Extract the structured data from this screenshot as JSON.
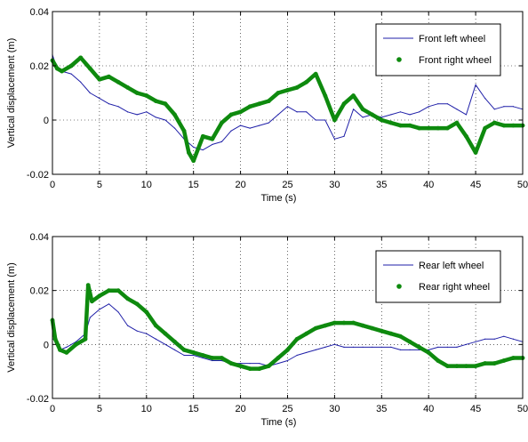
{
  "chart_data": [
    {
      "type": "line",
      "xlabel": "Time (s)",
      "ylabel": "Vertical displacement (m)",
      "xlim": [
        0,
        50
      ],
      "ylim": [
        -0.02,
        0.04
      ],
      "xticks": [
        0,
        5,
        10,
        15,
        20,
        25,
        30,
        35,
        40,
        45,
        50
      ],
      "yticks": [
        -0.02,
        0,
        0.02,
        0.04
      ],
      "ytick_labels": [
        "-0.02",
        "0",
        "0.02",
        "0.04"
      ],
      "grid": true,
      "legend_position": "top-right",
      "series": [
        {
          "name": "Front left wheel",
          "color": "#1f1fa8",
          "style": "thin-line",
          "x": [
            0,
            0.5,
            1,
            2,
            3,
            4,
            5,
            6,
            7,
            8,
            9,
            10,
            11,
            12,
            13,
            14,
            15,
            16,
            17,
            18,
            19,
            20,
            21,
            22,
            23,
            24,
            25,
            26,
            27,
            28,
            29,
            30,
            31,
            32,
            33,
            34,
            35,
            36,
            37,
            38,
            39,
            40,
            41,
            42,
            43,
            44,
            45,
            46,
            47,
            48,
            49,
            50
          ],
          "y": [
            0.024,
            0.019,
            0.018,
            0.017,
            0.014,
            0.01,
            0.008,
            0.006,
            0.005,
            0.003,
            0.002,
            0.003,
            0.001,
            0.0,
            -0.003,
            -0.007,
            -0.01,
            -0.011,
            -0.009,
            -0.008,
            -0.004,
            -0.002,
            -0.003,
            -0.002,
            -0.001,
            0.002,
            0.005,
            0.003,
            0.003,
            0.0,
            0.0,
            -0.007,
            -0.006,
            0.004,
            0.001,
            0.002,
            0.001,
            0.002,
            0.003,
            0.002,
            0.003,
            0.005,
            0.006,
            0.006,
            0.004,
            0.002,
            0.013,
            0.008,
            0.004,
            0.005,
            0.005,
            0.004
          ]
        },
        {
          "name": "Front right wheel",
          "color": "#0e8a0e",
          "style": "thick-marker-line",
          "x": [
            0,
            0.5,
            1,
            2,
            3,
            4,
            5,
            6,
            7,
            8,
            9,
            10,
            11,
            12,
            13,
            14,
            14.5,
            15,
            16,
            17,
            18,
            19,
            20,
            21,
            22,
            23,
            24,
            25,
            26,
            27,
            28,
            29,
            30,
            31,
            32,
            33,
            34,
            35,
            36,
            37,
            38,
            39,
            40,
            41,
            42,
            43,
            44,
            45,
            46,
            47,
            48,
            49,
            50
          ],
          "y": [
            0.022,
            0.019,
            0.018,
            0.02,
            0.023,
            0.019,
            0.015,
            0.016,
            0.014,
            0.012,
            0.01,
            0.009,
            0.007,
            0.006,
            0.002,
            -0.004,
            -0.012,
            -0.015,
            -0.006,
            -0.007,
            -0.001,
            0.002,
            0.003,
            0.005,
            0.006,
            0.007,
            0.01,
            0.011,
            0.012,
            0.014,
            0.017,
            0.009,
            0.0,
            0.006,
            0.009,
            0.004,
            0.002,
            0.0,
            -0.001,
            -0.002,
            -0.002,
            -0.003,
            -0.003,
            -0.003,
            -0.003,
            -0.001,
            -0.006,
            -0.012,
            -0.003,
            -0.001,
            -0.002,
            -0.002,
            -0.002
          ]
        }
      ]
    },
    {
      "type": "line",
      "xlabel": "Time (s)",
      "ylabel": "Vertical displacement (m)",
      "xlim": [
        0,
        50
      ],
      "ylim": [
        -0.02,
        0.04
      ],
      "xticks": [
        0,
        5,
        10,
        15,
        20,
        25,
        30,
        35,
        40,
        45,
        50
      ],
      "yticks": [
        -0.02,
        0,
        0.02,
        0.04
      ],
      "ytick_labels": [
        "-0.02",
        "0",
        "0.02",
        "0.04"
      ],
      "grid": true,
      "legend_position": "top-right",
      "series": [
        {
          "name": "Rear left wheel",
          "color": "#1f1fa8",
          "style": "thin-line",
          "x": [
            0,
            0.3,
            0.8,
            1.5,
            2.5,
            3.5,
            4,
            5,
            6,
            7,
            8,
            9,
            10,
            11,
            12,
            13,
            14,
            15,
            16,
            17,
            18,
            19,
            20,
            21,
            22,
            23,
            24,
            25,
            26,
            27,
            28,
            29,
            30,
            31,
            32,
            33,
            34,
            35,
            36,
            37,
            38,
            39,
            40,
            41,
            42,
            43,
            44,
            45,
            46,
            47,
            48,
            49,
            50
          ],
          "y": [
            0.002,
            0.002,
            -0.002,
            -0.001,
            0.001,
            0.004,
            0.01,
            0.013,
            0.015,
            0.012,
            0.007,
            0.005,
            0.004,
            0.002,
            0.0,
            -0.002,
            -0.004,
            -0.004,
            -0.005,
            -0.006,
            -0.006,
            -0.007,
            -0.007,
            -0.007,
            -0.007,
            -0.008,
            -0.007,
            -0.006,
            -0.004,
            -0.003,
            -0.002,
            -0.001,
            0.0,
            -0.001,
            -0.001,
            -0.001,
            -0.001,
            -0.001,
            -0.001,
            -0.002,
            -0.002,
            -0.002,
            -0.002,
            -0.001,
            -0.001,
            -0.001,
            0.0,
            0.001,
            0.002,
            0.002,
            0.003,
            0.002,
            0.001
          ]
        },
        {
          "name": "Rear right wheel",
          "color": "#0e8a0e",
          "style": "thick-marker-line",
          "x": [
            0,
            0.3,
            0.8,
            1.5,
            2.5,
            3.5,
            3.8,
            4.2,
            5,
            6,
            7,
            8,
            9,
            10,
            11,
            12,
            13,
            14,
            15,
            16,
            17,
            18,
            19,
            20,
            21,
            22,
            23,
            24,
            25,
            26,
            27,
            28,
            29,
            30,
            31,
            32,
            33,
            34,
            35,
            36,
            37,
            38,
            39,
            40,
            41,
            42,
            43,
            44,
            45,
            46,
            47,
            48,
            49,
            50
          ],
          "y": [
            0.009,
            0.002,
            -0.002,
            -0.003,
            0.0,
            0.002,
            0.022,
            0.016,
            0.018,
            0.02,
            0.02,
            0.017,
            0.015,
            0.012,
            0.007,
            0.004,
            0.001,
            -0.002,
            -0.003,
            -0.004,
            -0.005,
            -0.005,
            -0.007,
            -0.008,
            -0.009,
            -0.009,
            -0.008,
            -0.005,
            -0.002,
            0.002,
            0.004,
            0.006,
            0.007,
            0.008,
            0.008,
            0.008,
            0.007,
            0.006,
            0.005,
            0.004,
            0.003,
            0.001,
            -0.001,
            -0.003,
            -0.006,
            -0.008,
            -0.008,
            -0.008,
            -0.008,
            -0.007,
            -0.007,
            -0.006,
            -0.005,
            -0.005
          ]
        }
      ]
    }
  ]
}
